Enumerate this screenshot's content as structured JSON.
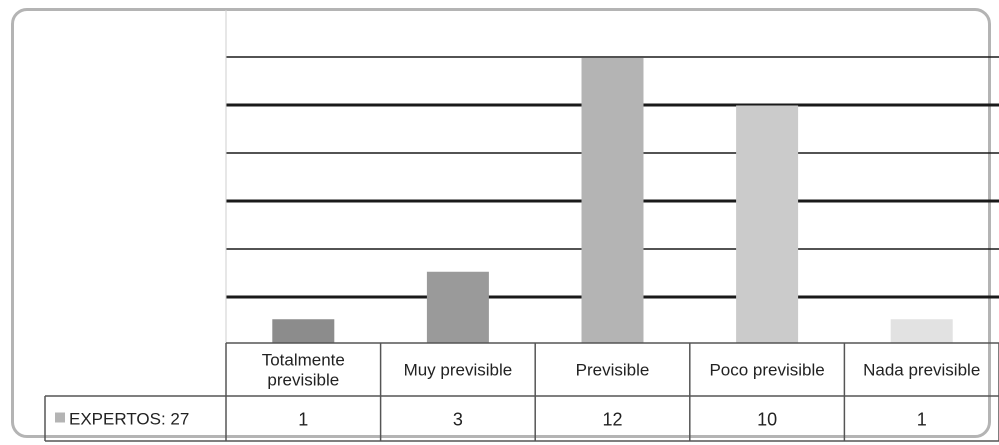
{
  "chart_data": {
    "type": "bar",
    "title": "",
    "xlabel": "",
    "ylabel": "",
    "ylim": [
      0,
      12
    ],
    "grid": true,
    "categories": [
      "Totalmente previsible",
      "Muy previsible",
      "Previsible",
      "Poco previsible",
      "Nada previsible"
    ],
    "category_lines": [
      [
        "Totalmente",
        "previsible"
      ],
      [
        "Muy previsible"
      ],
      [
        "Previsible"
      ],
      [
        "Poco previsible"
      ],
      [
        "Nada previsible"
      ]
    ],
    "series": [
      {
        "name": "EXPERTOS: 27",
        "values": [
          1,
          3,
          12,
          10,
          1
        ],
        "value_labels": [
          "1",
          "3",
          "12",
          "10",
          "1"
        ]
      }
    ],
    "legend": "in-table-left",
    "bar_colors": [
      "#8c8c8c",
      "#9a9a9a",
      "#b4b4b4",
      "#cbcbcb",
      "#e2e2e2"
    ],
    "legend_marker_color": "#b4b4b4",
    "gridline_color": "#1a1a1a"
  }
}
